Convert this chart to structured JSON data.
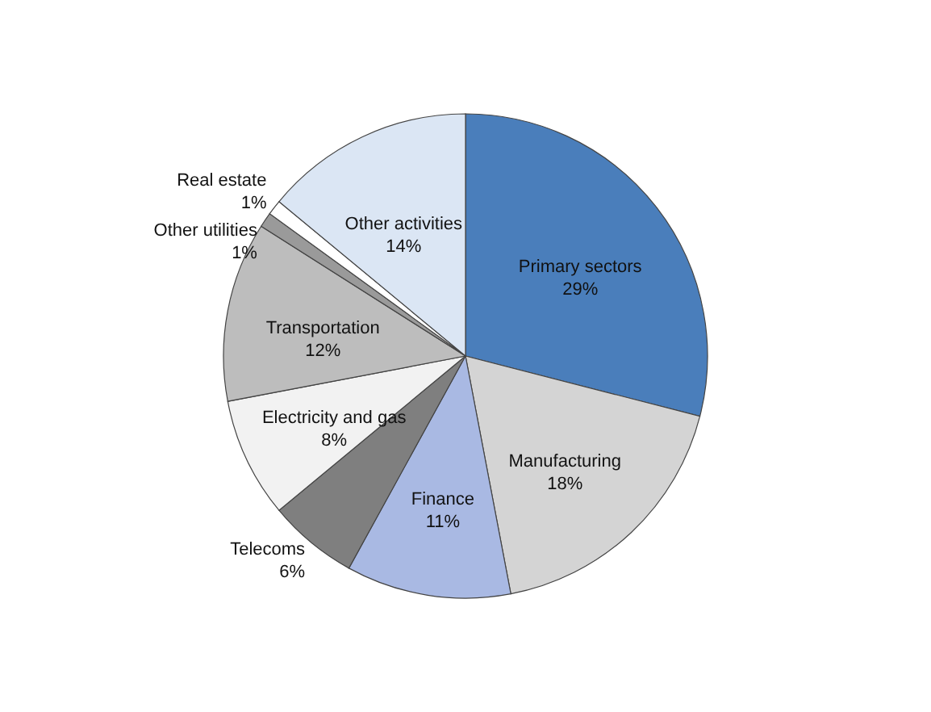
{
  "chart_data": {
    "type": "pie",
    "categories": [
      "Primary sectors",
      "Manufacturing",
      "Finance",
      "Telecoms",
      "Electricity and gas",
      "Transportation",
      "Other utilities",
      "Real estate",
      "Other activities"
    ],
    "values": [
      29,
      18,
      11,
      6,
      8,
      12,
      1,
      1,
      14
    ],
    "value_labels": [
      "29%",
      "18%",
      "11%",
      "6%",
      "8%",
      "12%",
      "1%",
      "1%",
      "14%"
    ],
    "colors": [
      "#4a7ebb",
      "#d4d4d4",
      "#a9b9e3",
      "#7f7f7f",
      "#f2f2f2",
      "#bdbdbd",
      "#9a9a9a",
      "#ffffff",
      "#dbe6f4"
    ]
  }
}
